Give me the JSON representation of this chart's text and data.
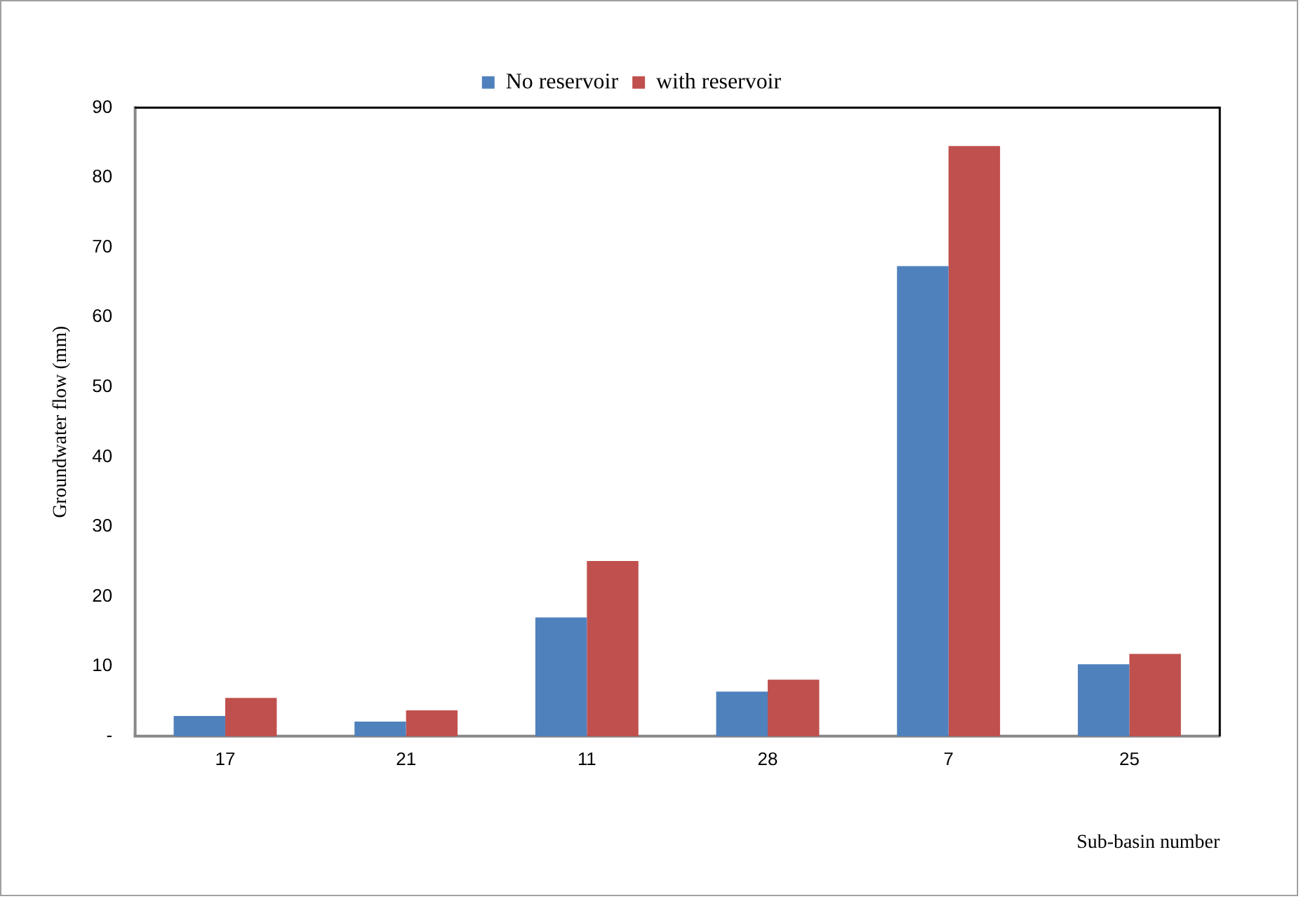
{
  "chart_data": {
    "type": "bar",
    "xlabel": "Sub-basin number",
    "ylabel": "Groundwater flow (mm)",
    "categories": [
      "17",
      "21",
      "11",
      "28",
      "7",
      "25"
    ],
    "series": [
      {
        "name": "No reservoir",
        "color": "#4f81bd",
        "values": [
          2.9,
          2.1,
          17.0,
          6.4,
          67.3,
          10.3
        ]
      },
      {
        "name": "with reservoir",
        "color": "#c0504d",
        "values": [
          5.5,
          3.7,
          25.1,
          8.1,
          84.5,
          11.8
        ]
      }
    ],
    "ylim": [
      0,
      90
    ],
    "yticks": [
      {
        "value": 0,
        "label": "-"
      },
      10,
      20,
      30,
      40,
      50,
      60,
      70,
      80,
      90
    ],
    "grid": false,
    "legend": "top"
  }
}
